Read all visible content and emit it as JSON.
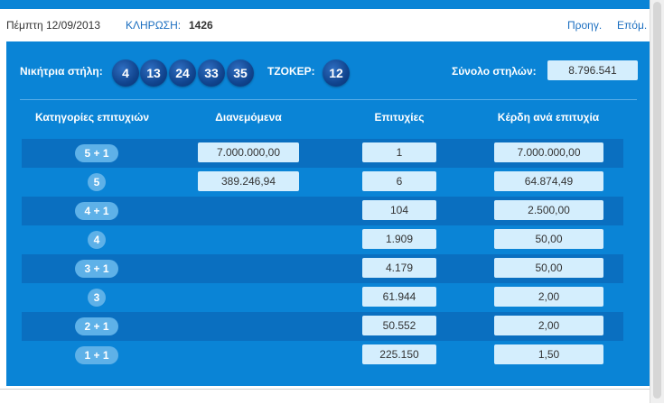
{
  "header": {
    "date": "Πέμπτη 12/09/2013",
    "draw_label": "ΚΛΗΡΩΣΗ:",
    "draw_number": "1426",
    "prev_label": "Προηγ.",
    "next_label": "Επόμ."
  },
  "draw": {
    "winning_label": "Νικήτρια στήλη:",
    "numbers": [
      "4",
      "13",
      "24",
      "33",
      "35"
    ],
    "joker_label": "ΤΖΟΚΕΡ:",
    "joker": "12",
    "total_label": "Σύνολο στηλών:",
    "total_value": "8.796.541"
  },
  "table": {
    "headers": [
      "Κατηγορίες επιτυχιών",
      "Διανεμόμενα",
      "Επιτυχίες",
      "Κέρδη ανά επιτυχία"
    ],
    "rows": [
      {
        "category": "5 + 1",
        "distributed": "7.000.000,00",
        "winners": "1",
        "prize": "7.000.000,00"
      },
      {
        "category": "5",
        "distributed": "389.246,94",
        "winners": "6",
        "prize": "64.874,49"
      },
      {
        "category": "4 + 1",
        "distributed": "",
        "winners": "104",
        "prize": "2.500,00"
      },
      {
        "category": "4",
        "distributed": "",
        "winners": "1.909",
        "prize": "50,00"
      },
      {
        "category": "3 + 1",
        "distributed": "",
        "winners": "4.179",
        "prize": "50,00"
      },
      {
        "category": "3",
        "distributed": "",
        "winners": "61.944",
        "prize": "2,00"
      },
      {
        "category": "2 + 1",
        "distributed": "",
        "winners": "50.552",
        "prize": "2,00"
      },
      {
        "category": "1 + 1",
        "distributed": "",
        "winners": "225.150",
        "prize": "1,50"
      }
    ]
  },
  "colors": {
    "panel": "#0a84d6",
    "row_dark": "#0a6fc0",
    "value_box": "#d4eefd",
    "ball": "#10448e",
    "pill": "#5eb1e8"
  }
}
